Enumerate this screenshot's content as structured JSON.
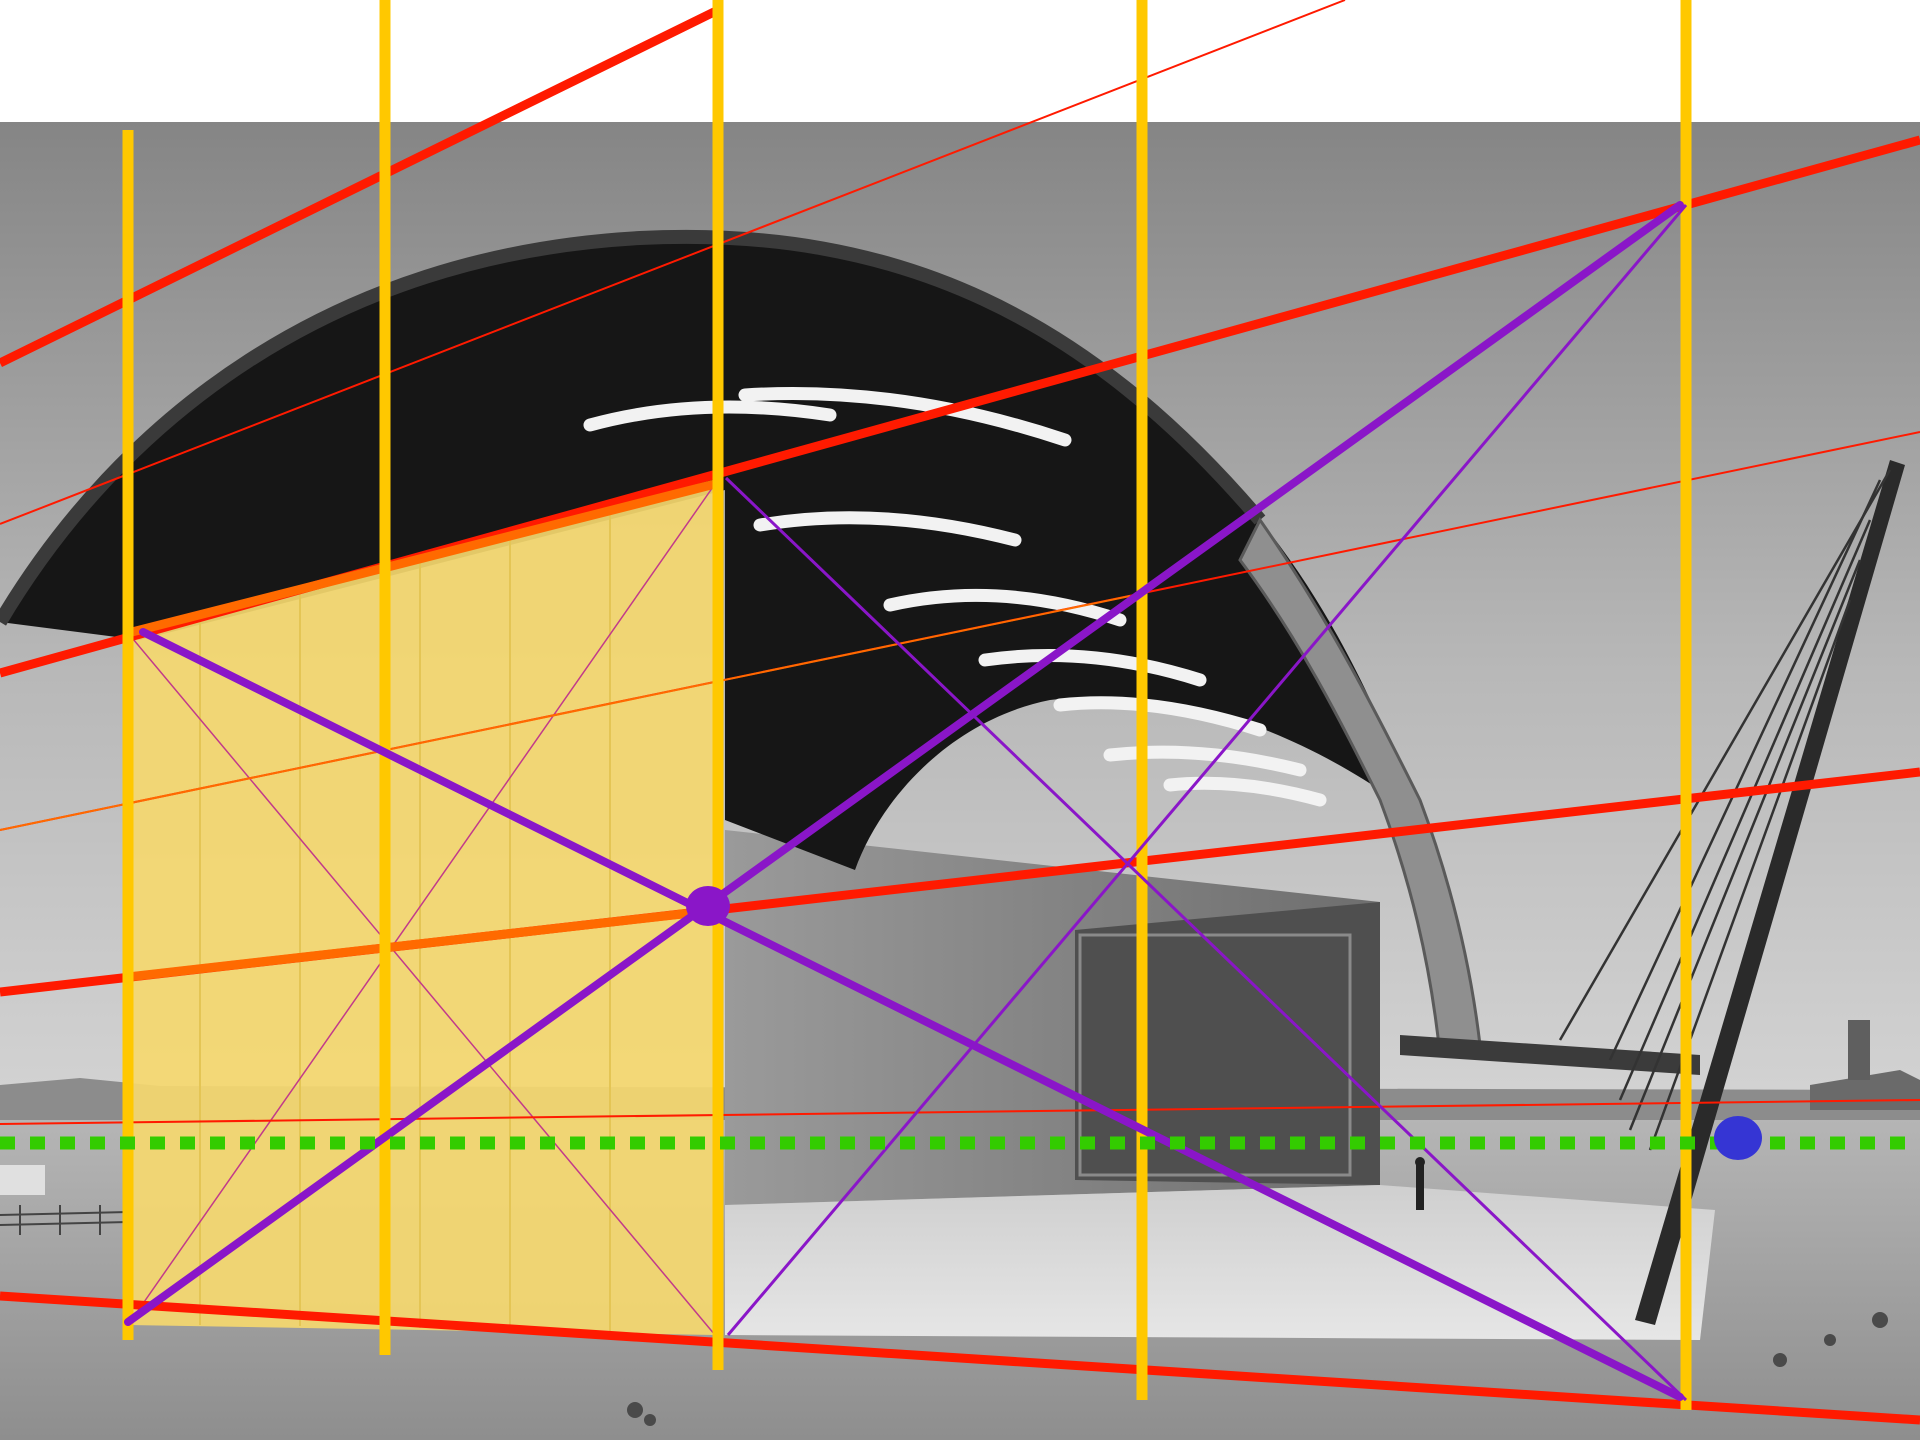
{
  "colors": {
    "background": "#ffffff",
    "sky_top": "#8a8a8a",
    "sky_bottom": "#c9c9c9",
    "roof_dark": "#141414",
    "roof_rib": "#f2f2f2",
    "ground": "#a9a9a9",
    "panel_yellow": "#f5d86f",
    "vertical_guides": "#ffc800",
    "red_lines": "#ff1a00",
    "orange_line": "#ff6a00",
    "purple_lines": "#8a16c8",
    "horizon": "#33cc00",
    "vanishing_point": "#3535d4"
  },
  "icons": {
    "central_point": "purple-dot-icon",
    "vanishing_point": "blue-dot-icon"
  }
}
